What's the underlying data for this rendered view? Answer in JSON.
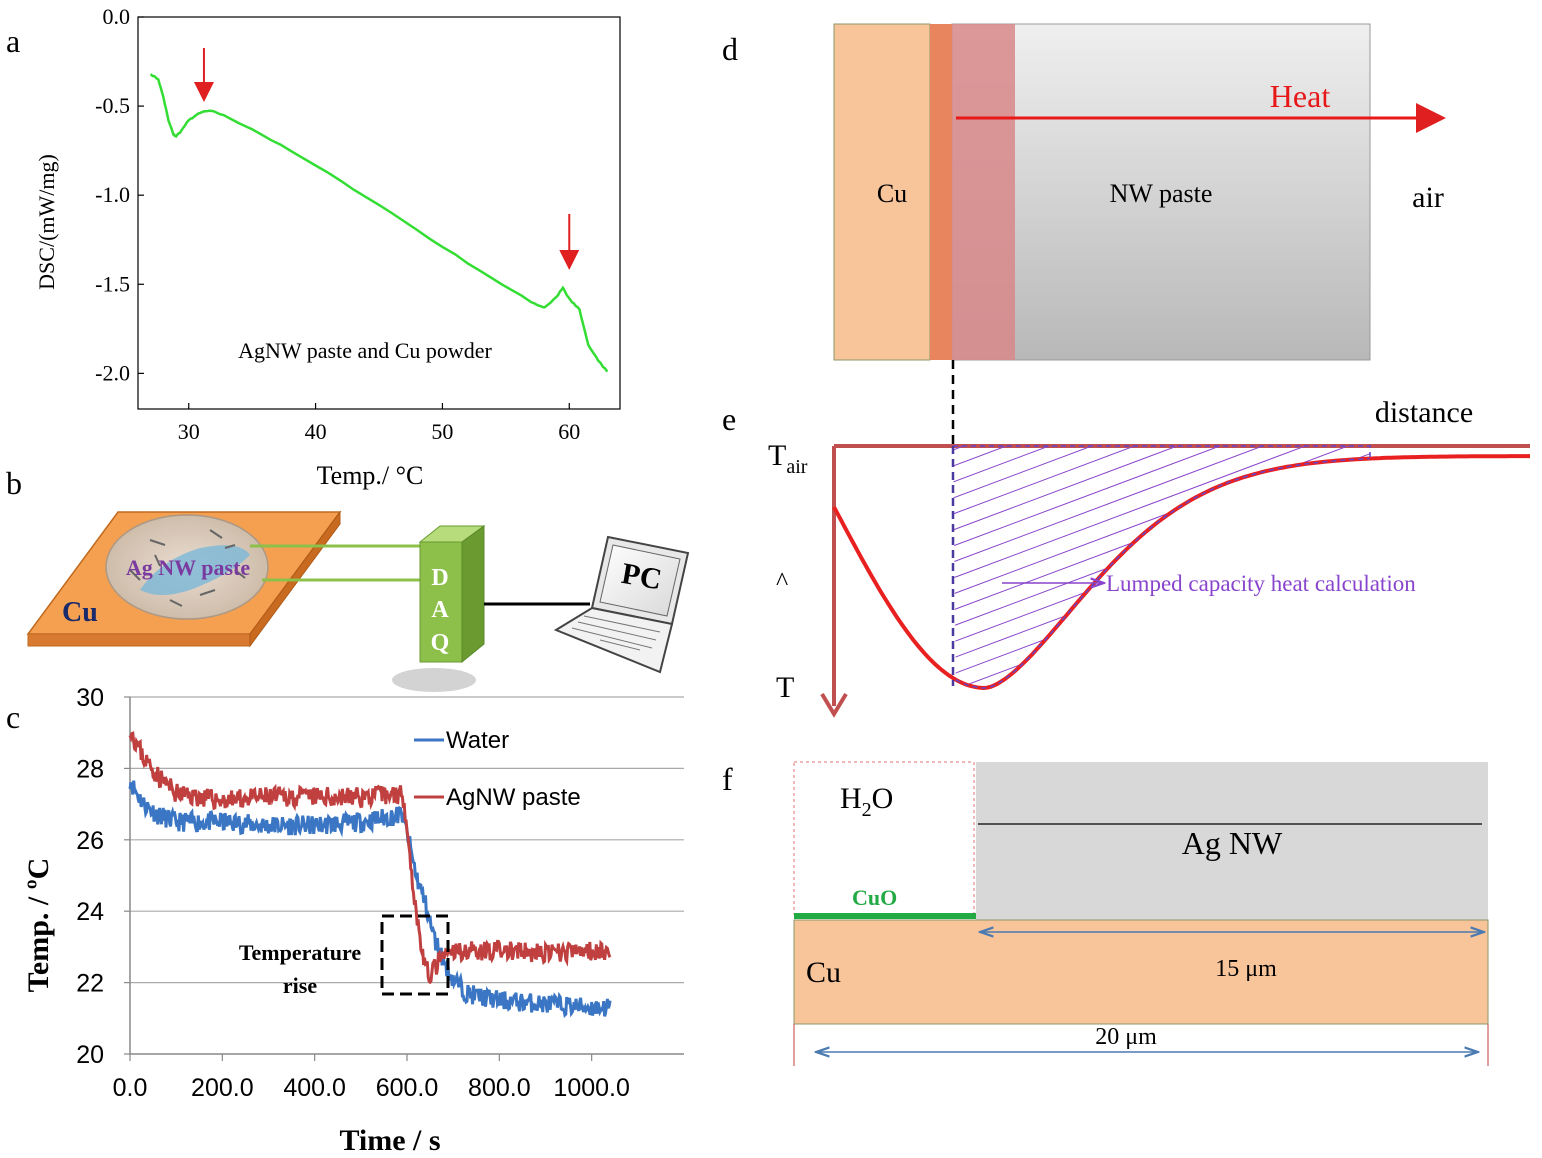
{
  "panels": {
    "a": {
      "letter": "a",
      "chart_data": {
        "type": "line",
        "title": "",
        "xlabel": "Temp./ °C",
        "ylabel": "DSC/(mW/mg)",
        "xlim": [
          26,
          64
        ],
        "ylim": [
          -2.2,
          0.0
        ],
        "x_ticks": [
          30,
          40,
          50,
          60
        ],
        "x_tick_labels": [
          "30",
          "40",
          "50",
          "60"
        ],
        "y_ticks": [
          0.0,
          -0.5,
          -1.0,
          -1.5,
          -2.0
        ],
        "y_tick_labels": [
          "0.0",
          "-0.5",
          "-1.0",
          "-1.5",
          "-2.0"
        ],
        "annotation": "AgNW paste and Cu powder",
        "arrows_at_x": [
          31.2,
          60.0
        ],
        "series": [
          {
            "color": "#33dd33",
            "x": [
              27.0,
              27.6,
              28.0,
              28.4,
              28.8,
              29.0,
              29.4,
              30.0,
              30.6,
              31.2,
              32.0,
              33.0,
              35.0,
              38.0,
              42.0,
              46.0,
              50.0,
              54.0,
              57.0,
              58.0,
              58.4,
              59.0,
              59.5,
              59.8,
              60.2,
              60.8,
              61.5,
              62.3,
              63.0
            ],
            "y": [
              -0.32,
              -0.35,
              -0.45,
              -0.58,
              -0.66,
              -0.67,
              -0.64,
              -0.58,
              -0.55,
              -0.53,
              -0.53,
              -0.56,
              -0.63,
              -0.75,
              -0.92,
              -1.1,
              -1.29,
              -1.47,
              -1.6,
              -1.63,
              -1.61,
              -1.57,
              -1.52,
              -1.56,
              -1.6,
              -1.64,
              -1.84,
              -1.93,
              -1.99
            ]
          }
        ]
      }
    },
    "b": {
      "letter": "b",
      "cu_label": "Cu",
      "paste_label": "Ag NW paste",
      "daq_letters": [
        "D",
        "A",
        "Q"
      ],
      "pc_label": "PC",
      "colors": {
        "cu": "#f0963c",
        "daq": "#8cc04a"
      }
    },
    "c": {
      "letter": "c",
      "chart_data": {
        "type": "line",
        "xlabel": "Time / s",
        "ylabel": "Temp. / ºC",
        "xlim": [
          0,
          1200
        ],
        "ylim": [
          20,
          30
        ],
        "x_ticks": [
          0,
          200,
          400,
          600,
          800,
          1000
        ],
        "x_tick_labels": [
          "0.0",
          "200.0",
          "400.0",
          "600.0",
          "800.0",
          "1000.0"
        ],
        "y_ticks": [
          20,
          22,
          24,
          26,
          28,
          30
        ],
        "y_tick_labels": [
          "20",
          "22",
          "24",
          "26",
          "28",
          "30"
        ],
        "grid": true,
        "legend_position": "top-right",
        "annotation": [
          "Temperature",
          "rise"
        ],
        "series": [
          {
            "name": "Water",
            "color": "#3a76c4",
            "x": [
              0,
              10,
              30,
              60,
              100,
              150,
              200,
              300,
              400,
              500,
              590,
              600,
              620,
              640,
              660,
              680,
              700,
              730,
              760,
              800,
              900,
              1000,
              1040
            ],
            "y": [
              27.7,
              27.4,
              27.0,
              26.7,
              26.5,
              26.5,
              26.5,
              26.4,
              26.4,
              26.5,
              26.7,
              26.2,
              25.0,
              24.2,
              23.2,
              22.6,
              22.1,
              21.7,
              21.6,
              21.5,
              21.4,
              21.3,
              21.3
            ]
          },
          {
            "name": "AgNW paste",
            "color": "#c04040",
            "x": [
              0,
              10,
              30,
              60,
              100,
              150,
              200,
              300,
              400,
              500,
              590,
              600,
              610,
              620,
              630,
              640,
              650,
              660,
              670,
              690,
              720,
              800,
              900,
              1000,
              1040
            ],
            "y": [
              29.2,
              28.8,
              28.3,
              27.8,
              27.3,
              27.2,
              27.1,
              27.2,
              27.2,
              27.2,
              27.3,
              26.5,
              25.0,
              24.0,
              23.1,
              22.4,
              22.2,
              22.4,
              22.6,
              22.8,
              22.9,
              22.9,
              22.8,
              22.9,
              22.9
            ]
          }
        ]
      }
    },
    "d": {
      "letter": "d",
      "cu_label": "Cu",
      "paste_label": "NW paste",
      "air_label": "air",
      "heat_label": "Heat",
      "colors": {
        "cu": "#f8c49a",
        "cu_edge": "#e8845e",
        "hot_zone": "#d8888a",
        "heat": "#e81818"
      }
    },
    "e": {
      "letter": "e",
      "t_air_main": "T",
      "t_air_sub": "air",
      "distance_label": "distance",
      "axis_mark": "^",
      "t_label": "T",
      "lumped_label": "Lumped capacity heat calculation",
      "colors": {
        "curve": "#e82020",
        "hatch": "#8844cc",
        "axis": "#c05050"
      }
    },
    "f": {
      "letter": "f",
      "h2o_main": "H",
      "h2o_sub": "2",
      "h2o_tail": "O",
      "agnw_label": "Ag NW",
      "cuo_label": "CuO",
      "cu_label": "Cu",
      "dim_15": "15 μm",
      "dim_20": "20 μm",
      "colors": {
        "cu": "#f8c49a",
        "agnw": "#d8d8d8",
        "cuo": "#22aa44",
        "dim": "#4a7ab0"
      }
    }
  }
}
